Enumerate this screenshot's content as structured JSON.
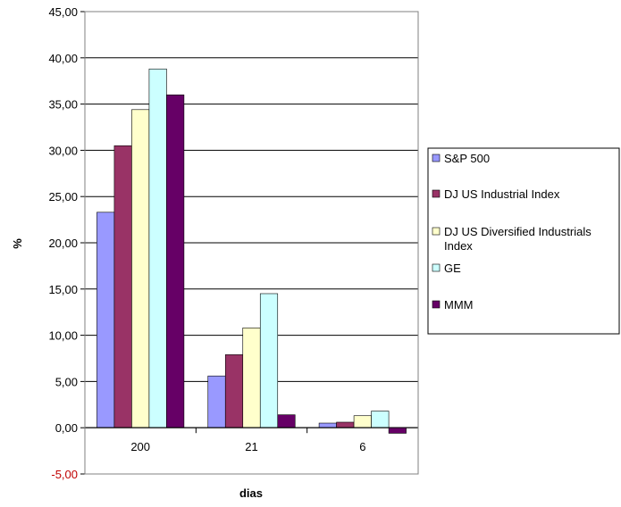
{
  "chart_data": {
    "type": "bar",
    "xlabel": "dias",
    "ylabel": "%",
    "categories": [
      "200",
      "21",
      "6"
    ],
    "ylim": [
      -5,
      45
    ],
    "yticks": [
      "-5,00",
      "0,00",
      "5,00",
      "10,00",
      "15,00",
      "20,00",
      "25,00",
      "30,00",
      "35,00",
      "40,00",
      "45,00"
    ],
    "grid": true,
    "legend_position": "right",
    "series": [
      {
        "name": "S&P 500",
        "color": "#9999ff",
        "values": [
          23.3,
          5.6,
          0.5
        ]
      },
      {
        "name": "DJ US Industrial Index",
        "color": "#993366",
        "values": [
          30.5,
          7.9,
          0.6
        ]
      },
      {
        "name": "DJ US Diversified Industrials Index",
        "color": "#ffffcc",
        "values": [
          34.4,
          10.8,
          1.3
        ]
      },
      {
        "name": "GE",
        "color": "#ccffff",
        "values": [
          38.8,
          14.5,
          1.8
        ]
      },
      {
        "name": "MMM",
        "color": "#660066",
        "values": [
          36.0,
          1.4,
          -0.6
        ]
      }
    ]
  }
}
